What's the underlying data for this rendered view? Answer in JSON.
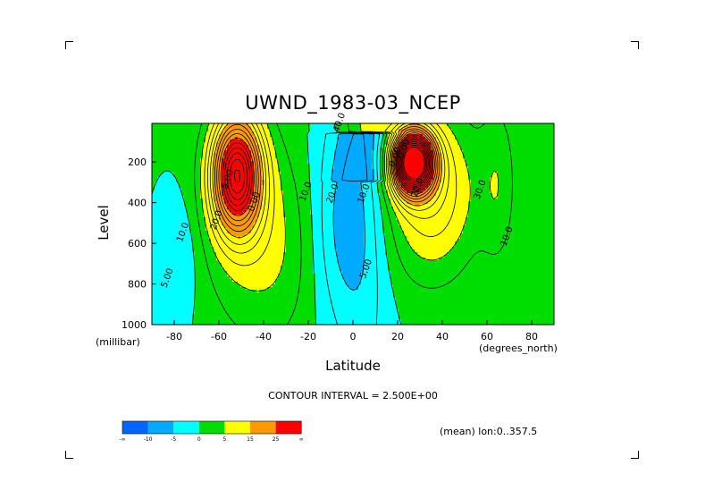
{
  "chart_data": {
    "type": "contour",
    "title": "UWND_1983-03_NCEP",
    "xlabel": "Latitude",
    "ylabel": "Level",
    "x_unit": "(degrees_north)",
    "y_unit": "(millibar)",
    "xlim": [
      -90,
      90
    ],
    "ylim": [
      1000,
      10
    ],
    "y_reversed": true,
    "x_ticks": [
      -80,
      -60,
      -40,
      -20,
      0,
      20,
      40,
      60,
      80
    ],
    "y_ticks": [
      200,
      400,
      600,
      800,
      1000
    ],
    "contour_interval_text": "CONTOUR INTERVAL = 2.500E+00",
    "mean_text": "(mean) lon:0..357.5",
    "contour_labels": [
      "40.0",
      "20.0",
      "10.0",
      "5.00",
      "0.00",
      "10.0",
      "20.0",
      "10.0",
      "5.00",
      "0.00",
      "0.00",
      "20.0",
      "30.0",
      "10.0",
      "5.00"
    ],
    "colorbar": {
      "colors": [
        "#0066ff",
        "#00aaff",
        "#00ffff",
        "#00dd00",
        "#ffff00",
        "#ff9900",
        "#ff0000"
      ],
      "labels": [
        "-∞",
        "-10",
        "-5",
        "0",
        "5",
        "15",
        "25",
        "∞"
      ]
    },
    "jets": [
      {
        "lat": -52,
        "level": 270,
        "max_speed": 27.5
      },
      {
        "lat": 27,
        "level": 200,
        "max_speed": 42.5
      }
    ]
  },
  "corner_marks": [
    "tl",
    "tr",
    "bl",
    "br"
  ]
}
